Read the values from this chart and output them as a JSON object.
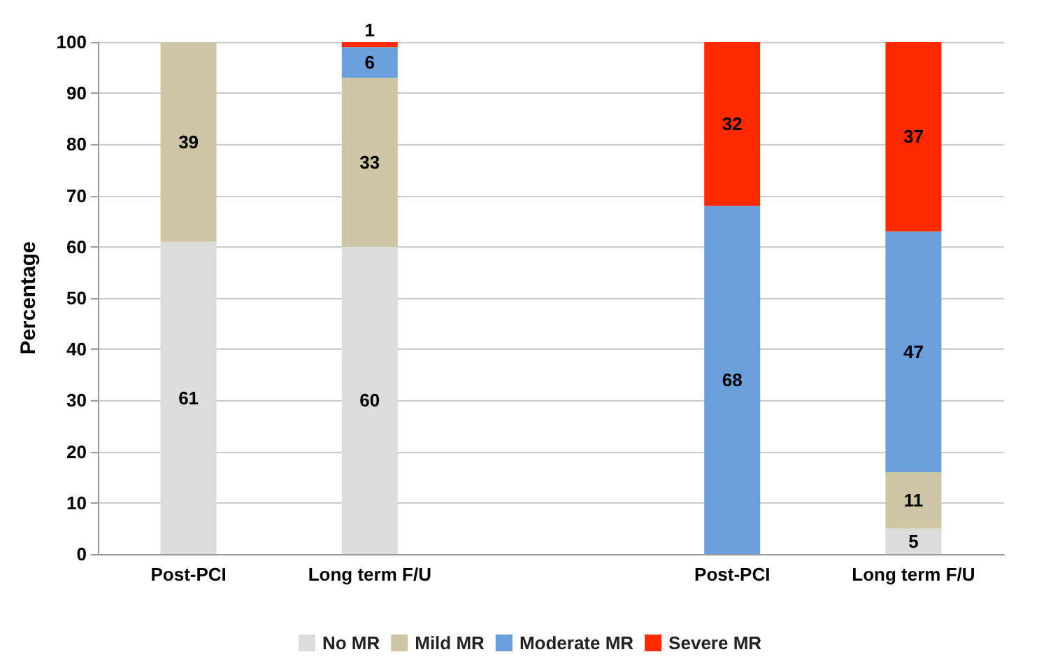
{
  "chart_data": {
    "type": "bar",
    "ylabel": "Percentage",
    "categories": [
      "Post-PCI",
      "Long term F/U",
      null,
      "Post-PCI",
      "Long term F/U"
    ],
    "series": [
      {
        "name": "No MR",
        "color": "#dcdcdc",
        "values": [
          61,
          60,
          null,
          null,
          5
        ]
      },
      {
        "name": "Mild MR",
        "color": "#cdc5a3",
        "values": [
          39,
          33,
          null,
          null,
          11
        ]
      },
      {
        "name": "Moderate MR",
        "color": "#6a9fdc",
        "values": [
          null,
          6,
          null,
          68,
          47
        ]
      },
      {
        "name": "Severe MR",
        "color": "#ff2a00",
        "values": [
          null,
          1,
          null,
          32,
          37
        ]
      }
    ],
    "stacked": true,
    "ylim": [
      0,
      100
    ],
    "yticks": [
      0,
      10,
      20,
      30,
      40,
      50,
      60,
      70,
      80,
      90,
      100
    ],
    "grid": "y",
    "legend": "bottom",
    "data_labels": true
  }
}
